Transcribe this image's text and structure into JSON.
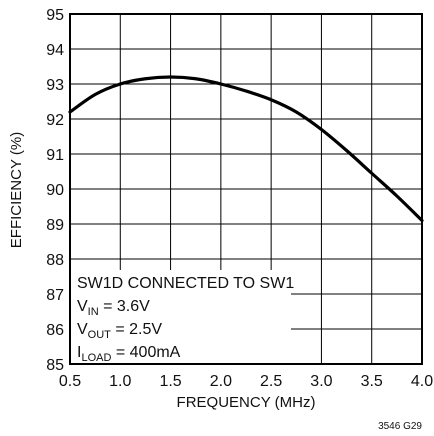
{
  "chart_data": {
    "type": "line",
    "title": "",
    "xlabel": "FREQUENCY (MHz)",
    "ylabel": "EFFICIENCY (%)",
    "xlim": [
      0.5,
      4.0
    ],
    "ylim": [
      85,
      95
    ],
    "x_ticks": [
      0.5,
      1.0,
      1.5,
      2.0,
      2.5,
      3.0,
      3.5,
      4.0
    ],
    "x_tick_labels": [
      "0.5",
      "1.0",
      "1.5",
      "2.0",
      "2.5",
      "3.0",
      "3.5",
      "4.0"
    ],
    "y_ticks": [
      85,
      86,
      87,
      88,
      89,
      90,
      91,
      92,
      93,
      94,
      95
    ],
    "y_tick_labels": [
      "85",
      "86",
      "87",
      "88",
      "89",
      "90",
      "91",
      "92",
      "93",
      "94",
      "95"
    ],
    "grid": true,
    "series": [
      {
        "x": [
          0.5,
          0.75,
          1.0,
          1.25,
          1.5,
          1.75,
          2.0,
          2.25,
          2.5,
          2.75,
          3.0,
          3.25,
          3.5,
          3.75,
          4.0
        ],
        "y": [
          92.2,
          92.7,
          93.0,
          93.15,
          93.2,
          93.15,
          93.0,
          92.8,
          92.55,
          92.2,
          91.7,
          91.1,
          90.45,
          89.8,
          89.1
        ]
      }
    ],
    "annotations": {
      "line1": "SW1D CONNECTED TO SW1",
      "vin_main": "V",
      "vin_sub": "IN",
      "vin_value": " = 3.6V",
      "vout_main": "V",
      "vout_sub": "OUT",
      "vout_value": " = 2.5V",
      "iload_main": "I",
      "iload_sub": "LOAD",
      "iload_value": " = 400mA"
    },
    "figure_id": "3546 G29"
  }
}
